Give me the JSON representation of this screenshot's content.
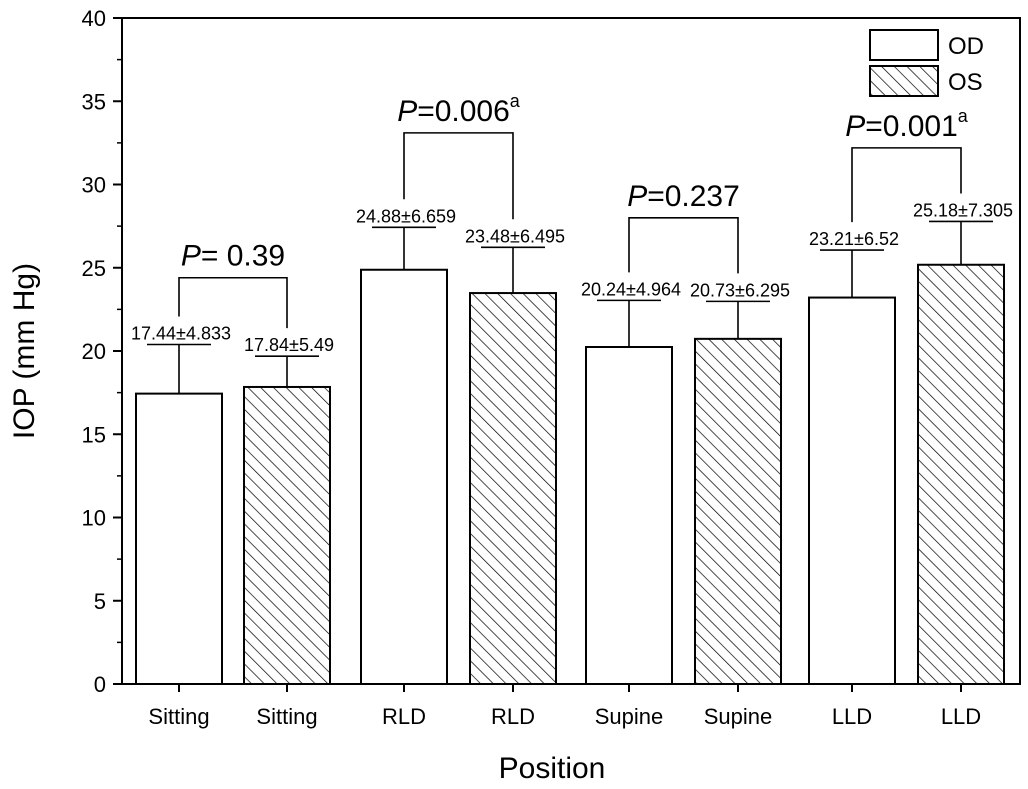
{
  "chart_data": {
    "type": "bar",
    "xlabel": "Position",
    "ylabel": "IOP (mm Hg)",
    "ylim": [
      0,
      40
    ],
    "yticks": [
      "0",
      "5",
      "10",
      "15",
      "20",
      "25",
      "30",
      "35",
      "40"
    ],
    "categories": [
      "Sitting",
      "Sitting",
      "RLD",
      "RLD",
      "Supine",
      "Supine",
      "LLD",
      "LLD"
    ],
    "bars": [
      {
        "category": "Sitting",
        "series": "OD",
        "value": 17.44,
        "error": 2.95,
        "label": "17.44±4.833"
      },
      {
        "category": "Sitting",
        "series": "OS",
        "value": 17.84,
        "error": 1.85,
        "label": "17.84±5.49"
      },
      {
        "category": "RLD",
        "series": "OD",
        "value": 24.88,
        "error": 2.55,
        "label": "24.88±6.659"
      },
      {
        "category": "RLD",
        "series": "OS",
        "value": 23.48,
        "error": 2.75,
        "label": "23.48±6.495"
      },
      {
        "category": "Supine",
        "series": "OD",
        "value": 20.24,
        "error": 2.8,
        "label": "20.24±4.964"
      },
      {
        "category": "Supine",
        "series": "OS",
        "value": 20.73,
        "error": 2.25,
        "label": "20.73±6.295"
      },
      {
        "category": "LLD",
        "series": "OD",
        "value": 23.21,
        "error": 2.85,
        "label": "23.21±6.52"
      },
      {
        "category": "LLD",
        "series": "OS",
        "value": 25.18,
        "error": 2.6,
        "label": "25.18±7.305"
      }
    ],
    "series": [
      {
        "name": "OD",
        "fill": "open"
      },
      {
        "name": "OS",
        "fill": "hatched"
      }
    ],
    "comparisons": [
      {
        "bars": [
          0,
          1
        ],
        "y": 24.4,
        "p_label": "P",
        "p_value": "= 0.39",
        "superscript": ""
      },
      {
        "bars": [
          2,
          3
        ],
        "y": 33.1,
        "p_label": "P",
        "p_value": "=0.006",
        "superscript": "a"
      },
      {
        "bars": [
          4,
          5
        ],
        "y": 28.0,
        "p_label": "P",
        "p_value": "=0.237",
        "superscript": ""
      },
      {
        "bars": [
          6,
          7
        ],
        "y": 32.2,
        "p_label": "P",
        "p_value": "=0.001",
        "superscript": "a"
      }
    ],
    "legend_position": "top-right",
    "grid": false,
    "colors": {
      "bar_stroke": "#000000",
      "hatch": "#000000",
      "background": "#ffffff"
    }
  }
}
